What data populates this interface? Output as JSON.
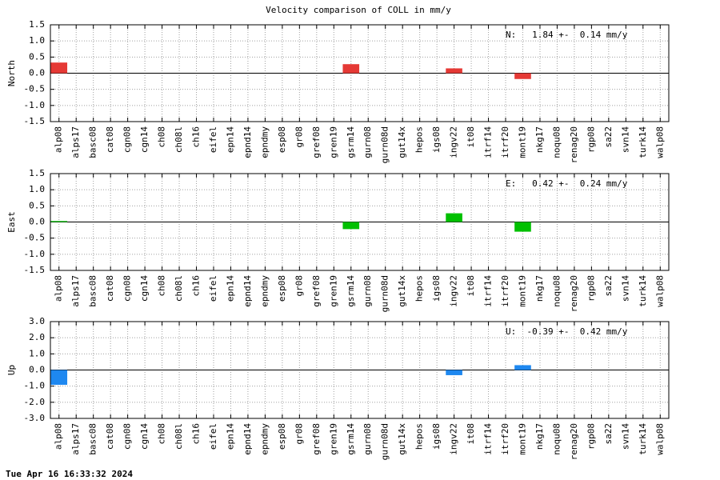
{
  "title": "Velocity comparison of COLL in mm/y",
  "footer": "Tue Apr 16 16:33:32 2024",
  "chart_data": [
    {
      "type": "bar",
      "ylabel": "North",
      "annotation": "N:   1.84 +-  0.14 mm/y",
      "color": "#e53935",
      "grid": true,
      "categories": [
        "alp08",
        "alps17",
        "basc08",
        "cat08",
        "cgn08",
        "cgn14",
        "ch08",
        "ch08l",
        "ch16",
        "eifel",
        "epn14",
        "epnd14",
        "epndmy",
        "esp08",
        "gr08",
        "gref08",
        "gren19",
        "gsrm14",
        "gurn08",
        "gurn08d",
        "gut14x",
        "hepos",
        "igs08",
        "ingv22",
        "it08",
        "itrf14",
        "itrf20",
        "mont19",
        "nkg17",
        "noqu08",
        "renag20",
        "rgp08",
        "sa22",
        "svn14",
        "turk14",
        "walp08"
      ],
      "values": [
        0.33,
        0,
        0,
        0,
        0,
        0,
        0,
        0,
        0,
        0,
        0,
        0,
        0,
        0,
        0,
        0,
        0,
        0.28,
        0,
        0,
        0,
        0,
        0,
        0.15,
        0,
        0,
        0,
        -0.18,
        0,
        0,
        0,
        0,
        0,
        0,
        0,
        0
      ],
      "ylim": [
        -1.5,
        1.5
      ],
      "yticks": [
        -1.5,
        {
          "value": -1,
          "label": "-1.0"
        },
        -0.5,
        {
          "value": 0,
          "label": "0.0"
        },
        0.5,
        {
          "value": 1,
          "label": "1.0"
        },
        1.5
      ]
    },
    {
      "type": "bar",
      "ylabel": "East",
      "annotation": "E:   0.42 +-  0.24 mm/y",
      "color": "#00c000",
      "grid": true,
      "categories": [
        "alp08",
        "alps17",
        "basc08",
        "cat08",
        "cgn08",
        "cgn14",
        "ch08",
        "ch08l",
        "ch16",
        "eifel",
        "epn14",
        "epnd14",
        "epndmy",
        "esp08",
        "gr08",
        "gref08",
        "gren19",
        "gsrm14",
        "gurn08",
        "gurn08d",
        "gut14x",
        "hepos",
        "igs08",
        "ingv22",
        "it08",
        "itrf14",
        "itrf20",
        "mont19",
        "nkg17",
        "noqu08",
        "renag20",
        "rgp08",
        "sa22",
        "svn14",
        "turk14",
        "walp08"
      ],
      "values": [
        0.03,
        0,
        0,
        0,
        0,
        0,
        0,
        0,
        0,
        0,
        0,
        0,
        0,
        0,
        0,
        0,
        0,
        -0.22,
        0,
        0,
        0,
        0,
        0,
        0.27,
        0,
        0,
        0,
        -0.3,
        0,
        0,
        0,
        0,
        0,
        0,
        0,
        0
      ],
      "ylim": [
        -1.5,
        1.5
      ],
      "yticks": [
        -1.5,
        {
          "value": -1,
          "label": "-1.0"
        },
        -0.5,
        {
          "value": 0,
          "label": "0.0"
        },
        0.5,
        {
          "value": 1,
          "label": "1.0"
        },
        1.5
      ]
    },
    {
      "type": "bar",
      "ylabel": "Up",
      "annotation": "U:  -0.39 +-  0.42 mm/y",
      "color": "#1e88f0",
      "grid": true,
      "categories": [
        "alp08",
        "alps17",
        "basc08",
        "cat08",
        "cgn08",
        "cgn14",
        "ch08",
        "ch08l",
        "ch16",
        "eifel",
        "epn14",
        "epnd14",
        "epndmy",
        "esp08",
        "gr08",
        "gref08",
        "gren19",
        "gsrm14",
        "gurn08",
        "gurn08d",
        "gut14x",
        "hepos",
        "igs08",
        "ingv22",
        "it08",
        "itrf14",
        "itrf20",
        "mont19",
        "nkg17",
        "noqu08",
        "renag20",
        "rgp08",
        "sa22",
        "svn14",
        "turk14",
        "walp08"
      ],
      "values": [
        -0.92,
        0,
        0,
        0,
        0,
        0,
        0,
        0,
        0,
        0,
        0,
        0,
        0,
        0,
        0,
        0,
        0,
        0,
        0,
        0,
        0,
        0,
        0,
        -0.32,
        0,
        0,
        0,
        0.3,
        0,
        0,
        0,
        0,
        0,
        0,
        0,
        0
      ],
      "ylim": [
        -3,
        3
      ],
      "yticks": [
        {
          "value": -3,
          "label": "-3.0"
        },
        {
          "value": -2,
          "label": "-2.0"
        },
        {
          "value": -1,
          "label": "-1.0"
        },
        {
          "value": 0,
          "label": "0.0"
        },
        {
          "value": 1,
          "label": "1.0"
        },
        {
          "value": 2,
          "label": "2.0"
        },
        {
          "value": 3,
          "label": "3.0"
        }
      ]
    }
  ]
}
